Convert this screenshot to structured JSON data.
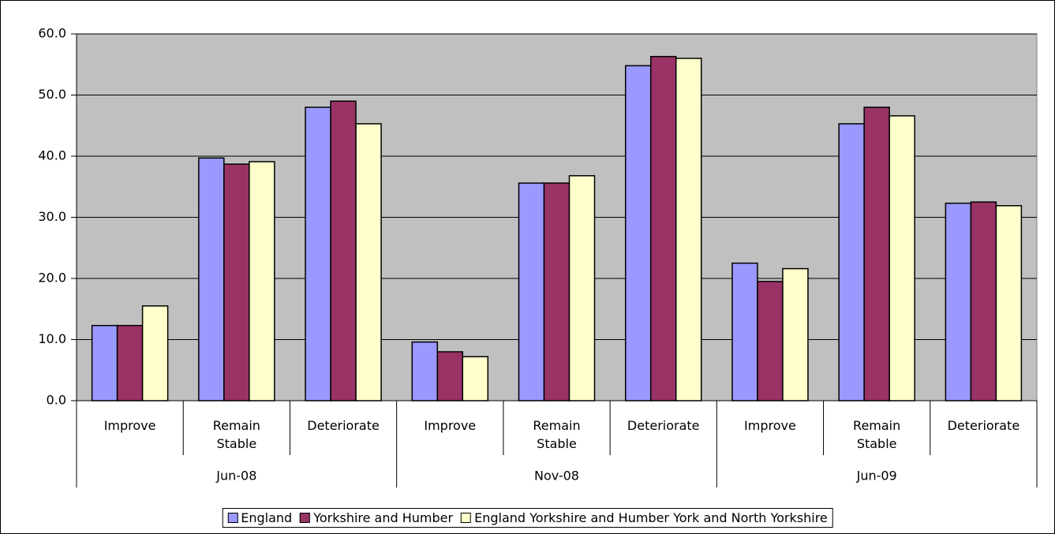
{
  "chart_data": {
    "type": "bar",
    "categories": [
      "Improve",
      "Remain Stable",
      "Deteriorate",
      "Improve",
      "Remain Stable",
      "Deteriorate",
      "Improve",
      "Remain Stable",
      "Deteriorate"
    ],
    "category_groups": [
      "Jun-08",
      "Nov-08",
      "Jun-09"
    ],
    "series": [
      {
        "name": "England",
        "color": "#9999ff",
        "values": [
          12.3,
          39.7,
          48.0,
          9.6,
          35.6,
          54.8,
          22.5,
          45.3,
          32.3
        ]
      },
      {
        "name": "Yorkshire and Humber",
        "color": "#993366",
        "values": [
          12.3,
          38.7,
          49.0,
          8.0,
          35.6,
          56.3,
          19.5,
          48.0,
          32.5
        ]
      },
      {
        "name": "England Yorkshire and Humber York and North Yorkshire",
        "color": "#ffffcc",
        "values": [
          15.5,
          39.1,
          45.3,
          7.2,
          36.8,
          56.0,
          21.6,
          46.6,
          31.9
        ]
      }
    ],
    "ylim": [
      0,
      60
    ],
    "yticks": [
      {
        "value": 0,
        "label": "0.0"
      },
      {
        "value": 10,
        "label": "10.0"
      },
      {
        "value": 20,
        "label": "20.0"
      },
      {
        "value": 30,
        "label": "30.0"
      },
      {
        "value": 40,
        "label": "40.0"
      },
      {
        "value": 50,
        "label": "50.0"
      },
      {
        "value": 60,
        "label": "60.0"
      }
    ],
    "grid": true,
    "legend": "bottom"
  }
}
